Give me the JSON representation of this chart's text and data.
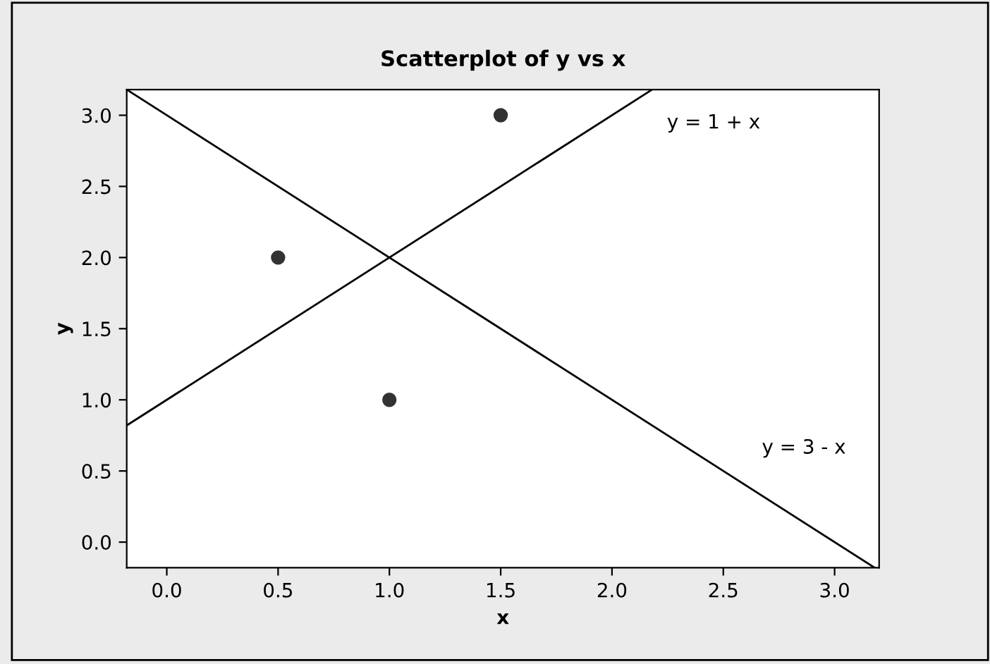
{
  "chart_data": {
    "type": "scatter",
    "title": "Scatterplot of y vs x",
    "xlabel": "x",
    "ylabel": "y",
    "xlim": [
      -0.18,
      3.2
    ],
    "ylim": [
      -0.18,
      3.18
    ],
    "xticks": [
      {
        "value": 0,
        "label": "0.0"
      },
      {
        "value": 0.5,
        "label": "0.5"
      },
      {
        "value": 1,
        "label": "1.0"
      },
      {
        "value": 1.5,
        "label": "1.5"
      },
      {
        "value": 2,
        "label": "2.0"
      },
      {
        "value": 2.5,
        "label": "2.5"
      },
      {
        "value": 3,
        "label": "3.0"
      }
    ],
    "yticks": [
      {
        "value": 0,
        "label": "0.0"
      },
      {
        "value": 0.5,
        "label": "0.5"
      },
      {
        "value": 1,
        "label": "1.0"
      },
      {
        "value": 1.5,
        "label": "1.5"
      },
      {
        "value": 2,
        "label": "2.0"
      },
      {
        "value": 2.5,
        "label": "2.5"
      },
      {
        "value": 3,
        "label": "3.0"
      }
    ],
    "grid": false,
    "legend": false,
    "series": [
      {
        "color": "#333333",
        "marker": "circle",
        "x": [
          0.5,
          1,
          1.5
        ],
        "values": [
          2,
          1,
          3
        ]
      },
      {
        "type": "line",
        "color": "#000000",
        "x": [
          -0.18,
          2.18
        ],
        "values": [
          0.82,
          3.18
        ]
      },
      {
        "type": "line",
        "color": "#000000",
        "x": [
          -0.18,
          3.18
        ],
        "values": [
          3.18,
          -0.18
        ]
      }
    ],
    "annotations": [
      "y = 1 + x",
      "y = 3 - x"
    ]
  }
}
